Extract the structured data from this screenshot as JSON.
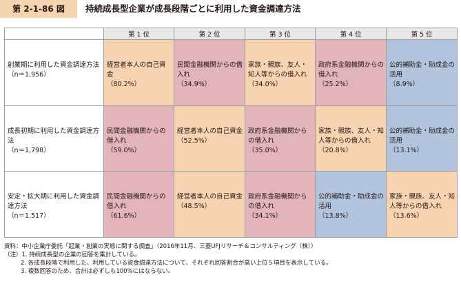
{
  "figure": {
    "label": "第 2-1-86 図",
    "title": "持続成長型企業が成長段階ごとに利用した資金調達方法"
  },
  "colors": {
    "label_bg": "#f5d5b1",
    "header_bg": "#e8e8e8",
    "orange": "#f8d3b2",
    "pink": "#e4b4bb",
    "blue": "#b3c5de"
  },
  "table": {
    "columns": [
      "第 1 位",
      "第 2 位",
      "第 3 位",
      "第 4 位",
      "第 5 位"
    ],
    "rows": [
      {
        "label": "創業期に利用した資金調達方法",
        "n": "（n＝1,956）",
        "cells": [
          {
            "text": "経営者本人の自己資金",
            "pct": "（80.2%）",
            "color": "orange"
          },
          {
            "text": "民間金融機関からの借入れ",
            "pct": "（34.9%）",
            "color": "pink"
          },
          {
            "text": "家族・親族、友人・知人等からの借入れ",
            "pct": "（34.0%）",
            "color": "orange"
          },
          {
            "text": "政府系金融機関からの借入れ",
            "pct": "（25.2%）",
            "color": "pink"
          },
          {
            "text": "公的補助金・助成金の活用",
            "pct": "（8.9%）",
            "color": "blue"
          }
        ]
      },
      {
        "label": "成長初期に利用した資金調達方法",
        "n": "（n＝1,798）",
        "cells": [
          {
            "text": "民間金融機関からの借入れ",
            "pct": "（59.0%）",
            "color": "pink"
          },
          {
            "text": "経営者本人の自己資金",
            "pct": "（52.5%）",
            "color": "orange"
          },
          {
            "text": "政府系金融機関からの借入れ",
            "pct": "（35.0%）",
            "color": "pink"
          },
          {
            "text": "家族・親族、友人・知人等からの借入れ",
            "pct": "（20.8%）",
            "color": "orange"
          },
          {
            "text": "公的補助金・助成金の活用",
            "pct": "（13.1%）",
            "color": "blue"
          }
        ]
      },
      {
        "label": "安定・拡大期に利用した資金調達方法",
        "n": "（n＝1,517）",
        "cells": [
          {
            "text": "民間金融機関からの借入れ",
            "pct": "（61.6%）",
            "color": "pink"
          },
          {
            "text": "経営者本人の自己資金",
            "pct": "（48.5%）",
            "color": "orange"
          },
          {
            "text": "政府系金融機関からの借入れ",
            "pct": "（34.1%）",
            "color": "pink"
          },
          {
            "text": "公的補助金・助成金の活用",
            "pct": "（13.8%）",
            "color": "blue"
          },
          {
            "text": "家族・親族、友人・知人等からの借入れ",
            "pct": "（13.6%）",
            "color": "orange"
          }
        ]
      }
    ]
  },
  "notes": {
    "source": "資料：中小企業庁委託「起業・創業の実態に関する調査」（2016年11月、三菱UFJリサーチ＆コンサルティング（株））",
    "note1": "（注）1. 持続成長型の企業の回答を集計している。",
    "note2": "2. 各成長段階で利用した、利用している資金調達方法について、それぞれ回答割合が高い上位５項目を表示している。",
    "note3": "3. 複数回答のため、合計は必ずしも100%にはならない。"
  }
}
